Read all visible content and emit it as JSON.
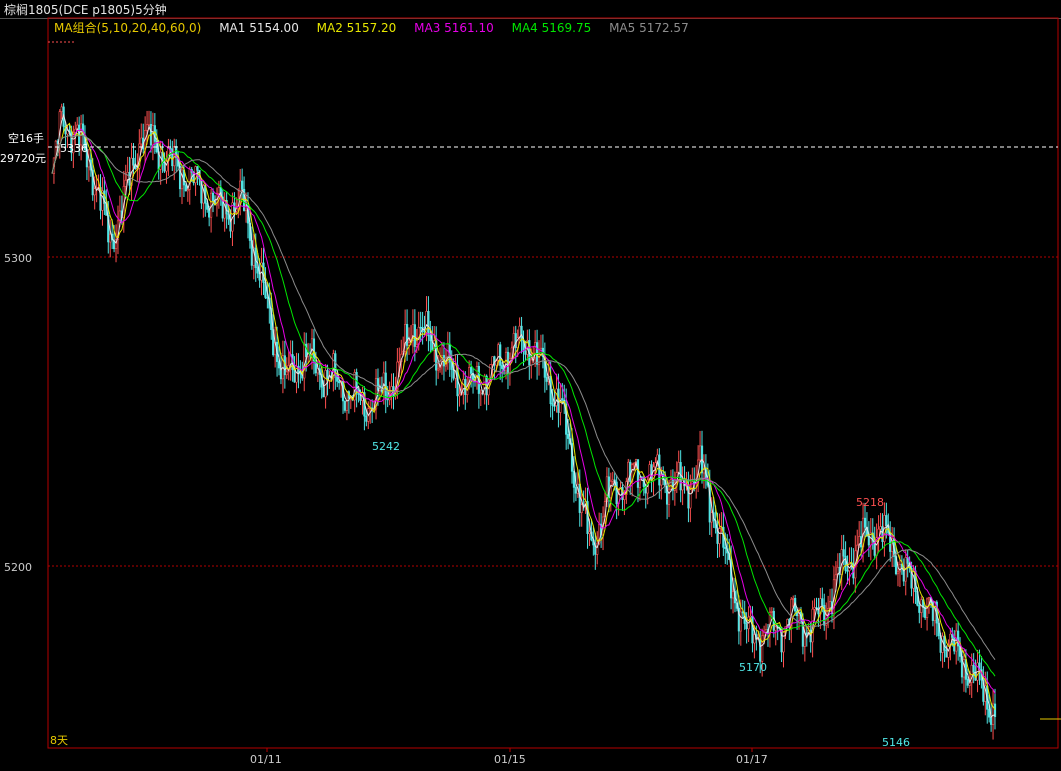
{
  "window": {
    "title": "棕榈1805(DCE p1805)5分钟"
  },
  "legend": {
    "group": "MA组合(5,10,20,40,60,0)",
    "items": [
      {
        "label": "MA1 5154.00",
        "color": "#e6e6e6"
      },
      {
        "label": "MA2 5157.20",
        "color": "#e6e600"
      },
      {
        "label": "MA3 5161.10",
        "color": "#e600e6"
      },
      {
        "label": "MA4 5169.75",
        "color": "#00e600"
      },
      {
        "label": "MA5 5172.57",
        "color": "#8c8c8c"
      }
    ],
    "group_color": "#e6c800"
  },
  "position": {
    "label": "空16手",
    "amount": "29720元",
    "price_label": "5336"
  },
  "period_label": "8天",
  "colors": {
    "up": "#ff5050",
    "down": "#50e6e6",
    "grid": "#b40000",
    "high_label": "#ff5050",
    "low_label": "#50e6e6"
  },
  "chart_data": {
    "type": "candlestick",
    "y_ticks": [
      "5300",
      "5200"
    ],
    "x_ticks": [
      "01/11",
      "01/15",
      "01/17"
    ],
    "ylim": [
      5145,
      5358
    ],
    "annotations": [
      {
        "text": "5242",
        "kind": "low"
      },
      {
        "text": "5170",
        "kind": "low"
      },
      {
        "text": "5218",
        "kind": "high"
      },
      {
        "text": "5146",
        "kind": "low"
      }
    ],
    "price_path": [
      [
        0,
        5325
      ],
      [
        5,
        5345
      ],
      [
        12,
        5340
      ],
      [
        20,
        5330
      ],
      [
        30,
        5305
      ],
      [
        38,
        5320
      ],
      [
        46,
        5340
      ],
      [
        55,
        5335
      ],
      [
        62,
        5330
      ],
      [
        72,
        5325
      ],
      [
        80,
        5320
      ],
      [
        88,
        5315
      ],
      [
        98,
        5318
      ],
      [
        105,
        5300
      ],
      [
        112,
        5280
      ],
      [
        120,
        5260
      ],
      [
        130,
        5268
      ],
      [
        140,
        5262
      ],
      [
        150,
        5258
      ],
      [
        160,
        5252
      ],
      [
        170,
        5255
      ],
      [
        178,
        5262
      ],
      [
        186,
        5278
      ],
      [
        196,
        5272
      ],
      [
        206,
        5262
      ],
      [
        216,
        5258
      ],
      [
        226,
        5262
      ],
      [
        236,
        5270
      ],
      [
        246,
        5272
      ],
      [
        254,
        5262
      ],
      [
        262,
        5252
      ],
      [
        270,
        5228
      ],
      [
        278,
        5205
      ],
      [
        286,
        5222
      ],
      [
        296,
        5228
      ],
      [
        306,
        5230
      ],
      [
        316,
        5228
      ],
      [
        326,
        5225
      ],
      [
        334,
        5232
      ],
      [
        342,
        5215
      ],
      [
        350,
        5195
      ],
      [
        358,
        5178
      ],
      [
        366,
        5178
      ],
      [
        374,
        5180
      ],
      [
        382,
        5184
      ],
      [
        390,
        5180
      ],
      [
        398,
        5186
      ],
      [
        408,
        5200
      ],
      [
        418,
        5208
      ],
      [
        426,
        5212
      ],
      [
        434,
        5205
      ],
      [
        442,
        5195
      ],
      [
        450,
        5188
      ],
      [
        458,
        5178
      ],
      [
        466,
        5172
      ],
      [
        474,
        5165
      ],
      [
        480,
        5160
      ],
      [
        486,
        5152
      ]
    ],
    "ma_lag": [
      3,
      5,
      9,
      16,
      24
    ]
  }
}
